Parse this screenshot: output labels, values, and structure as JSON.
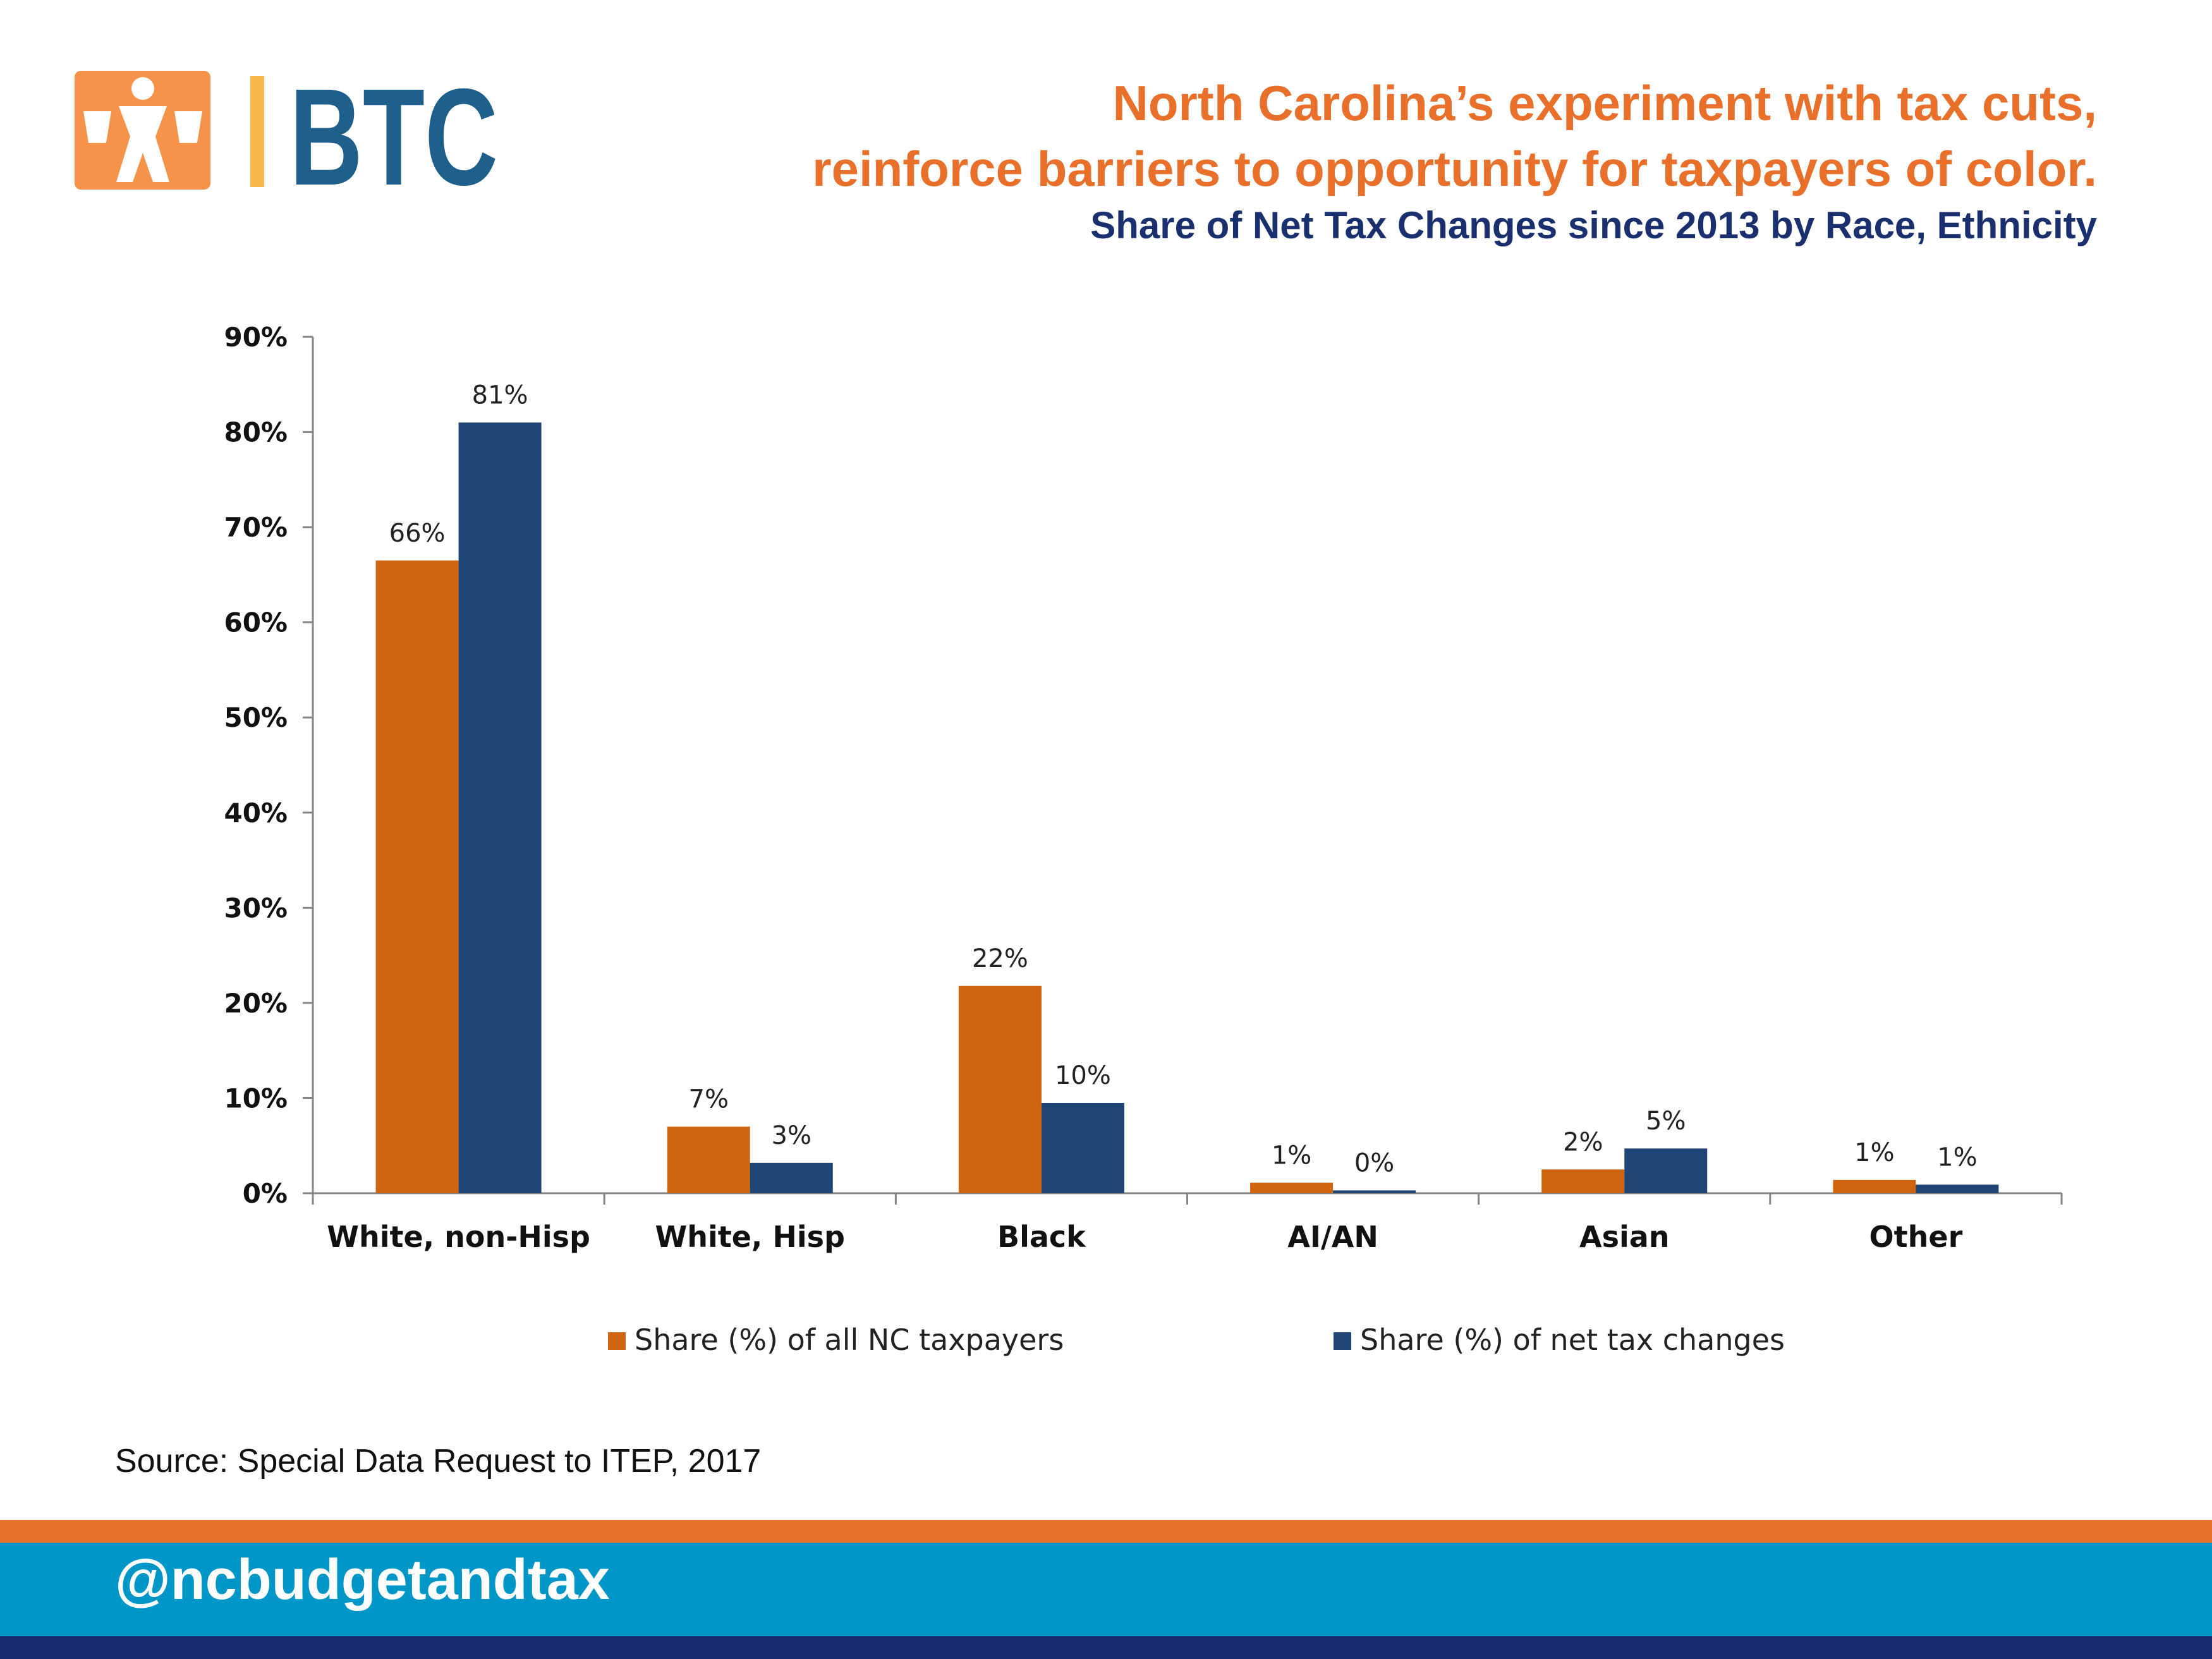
{
  "header": {
    "logo_text": "BTC",
    "title_line1": "North Carolina’s experiment with tax cuts,",
    "title_line2": "reinforce barriers to opportunity for taxpayers of color.",
    "subtitle": "Share of Net Tax Changes since 2013 by Race, Ethnicity"
  },
  "colors": {
    "brand_orange": "#e8702a",
    "series1": "#d0640f",
    "series2": "#1f4576",
    "navy_text": "#1a2f6e",
    "footer_blue": "#0096c7",
    "footer_navy": "#1a2a6e",
    "logo_orange": "#f5934a",
    "logo_blue": "#1e5f8c",
    "logo_yellow": "#f7b84a"
  },
  "chart_data": {
    "type": "bar",
    "categories": [
      "White, non-Hisp",
      "White, Hisp",
      "Black",
      "AI/AN",
      "Asian",
      "Other"
    ],
    "series": [
      {
        "name": "Share (%) of all NC taxpayers",
        "values": [
          66.5,
          7.0,
          21.8,
          1.1,
          2.5,
          1.4
        ],
        "labels": [
          "66%",
          "7%",
          "22%",
          "1%",
          "2%",
          "1%"
        ]
      },
      {
        "name": "Share (%) of net tax changes",
        "values": [
          81.0,
          3.2,
          9.5,
          0.3,
          4.7,
          0.9
        ],
        "labels": [
          "81%",
          "3%",
          "10%",
          "0%",
          "5%",
          "1%"
        ]
      }
    ],
    "ylim": [
      0,
      90
    ],
    "yticks": [
      "0%",
      "10%",
      "20%",
      "30%",
      "40%",
      "50%",
      "60%",
      "70%",
      "80%",
      "90%"
    ],
    "legend_position": "bottom",
    "grid": false
  },
  "source": "Source: Special Data Request to ITEP, 2017",
  "footer": {
    "handle": "@ncbudgetandtax"
  }
}
